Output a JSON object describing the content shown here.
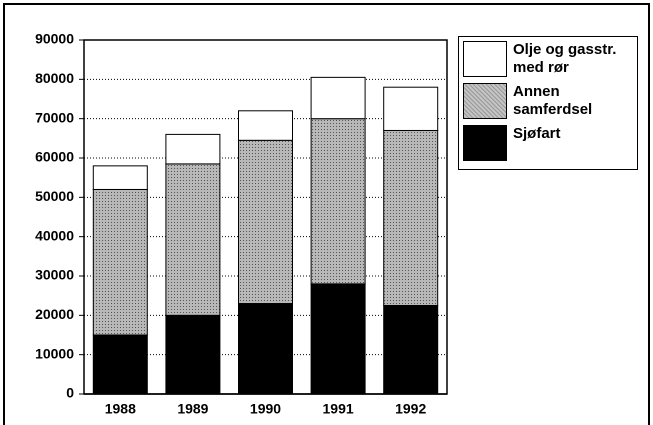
{
  "chart_data": {
    "type": "stacked_bar",
    "categories": [
      "1988",
      "1989",
      "1990",
      "1991",
      "1992"
    ],
    "series": [
      {
        "name": "Sjøfart",
        "color": "#000000",
        "values": [
          15000,
          20000,
          23000,
          28000,
          22500
        ]
      },
      {
        "name": "Annen samferdsel",
        "color": "#a8a8a8",
        "values": [
          37000,
          38500,
          41500,
          42000,
          44500
        ]
      },
      {
        "name": "Olje og gasstr. med rør",
        "color": "#ffffff",
        "values": [
          6000,
          7500,
          7500,
          10500,
          11000
        ]
      }
    ],
    "ylim": [
      0,
      90000
    ],
    "yticks": [
      0,
      10000,
      20000,
      30000,
      40000,
      50000,
      60000,
      70000,
      80000,
      90000
    ],
    "grid": true
  }
}
